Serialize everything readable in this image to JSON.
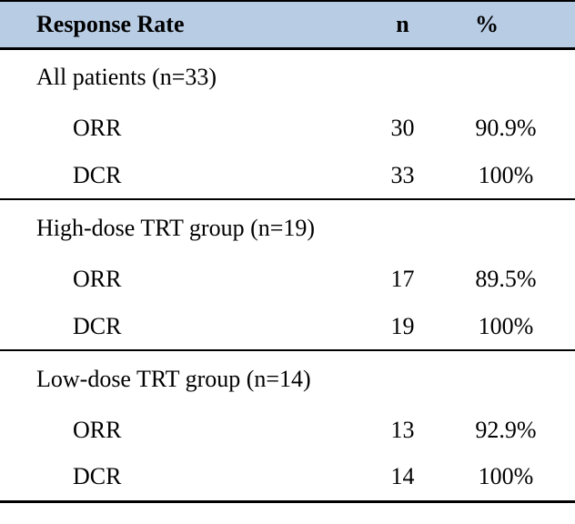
{
  "table": {
    "header": {
      "label": "Response Rate",
      "n": "n",
      "percent": "%"
    },
    "sections": [
      {
        "label": "All patients (n=33)",
        "rows": [
          {
            "metric": "ORR",
            "n": "30",
            "percent": "90.9%"
          },
          {
            "metric": "DCR",
            "n": "33",
            "percent": "100%"
          }
        ]
      },
      {
        "label": "High-dose TRT group (n=19)",
        "rows": [
          {
            "metric": "ORR",
            "n": "17",
            "percent": "89.5%"
          },
          {
            "metric": "DCR",
            "n": "19",
            "percent": "100%"
          }
        ]
      },
      {
        "label": "Low-dose TRT group (n=14)",
        "rows": [
          {
            "metric": "ORR",
            "n": "13",
            "percent": "92.9%"
          },
          {
            "metric": "DCR",
            "n": "14",
            "percent": "100%"
          }
        ]
      }
    ],
    "colors": {
      "header_bg": "#b8cce4",
      "border": "#000000",
      "text": "#000000"
    }
  }
}
